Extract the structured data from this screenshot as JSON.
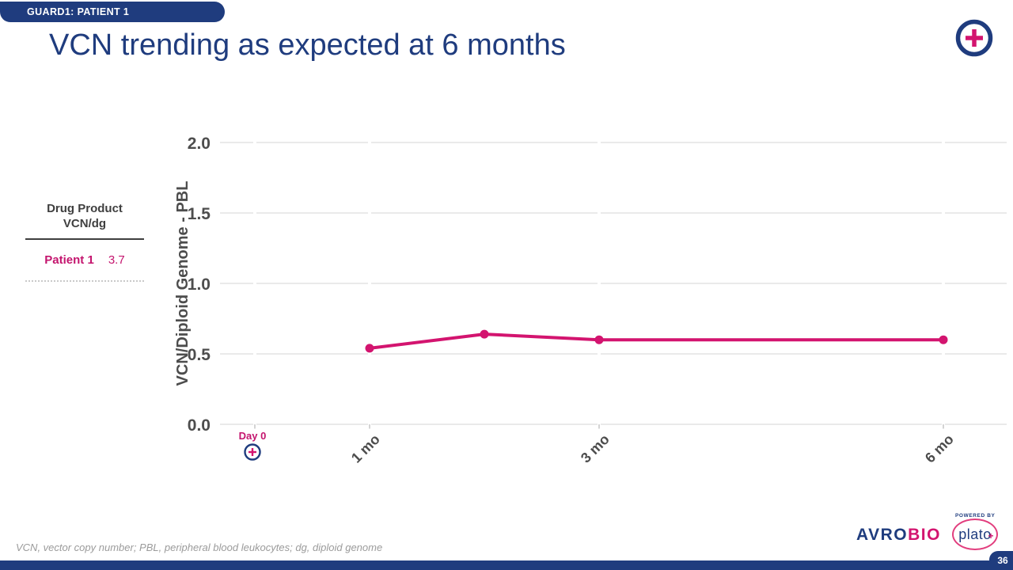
{
  "slide": {
    "badge": "GUARD1: PATIENT 1",
    "title": "VCN trending as expected at 6 months",
    "footnote": "VCN, vector copy number; PBL, peripheral blood leukocytes; dg, diploid genome",
    "page_number": "36"
  },
  "colors": {
    "navy": "#1F3C7E",
    "magenta": "#D3146F",
    "axis_text": "#4D4D4D",
    "gridline": "#E3E3E3"
  },
  "side_table": {
    "header_line1": "Drug Product",
    "header_line2": "VCN/dg",
    "rows": [
      {
        "label": "Patient 1",
        "value": "3.7"
      }
    ]
  },
  "logo": {
    "brand_prefix": "AVRO",
    "brand_suffix": "BIO",
    "powered_by": "POWERED BY",
    "product": "plato",
    "plato_plus": "+"
  },
  "icons": {
    "header_plus_circle": "plus-in-circle",
    "day0_plus_circle": "plus-in-circle"
  },
  "chart_data": {
    "type": "line",
    "title": "",
    "xlabel": "",
    "ylabel": "VCN/Diploid Genome - PBL",
    "ylim": [
      0,
      2.0
    ],
    "yticks": [
      0.0,
      0.5,
      1.0,
      1.5,
      2.0
    ],
    "x_unit": "months",
    "grid": true,
    "xticks": [
      {
        "pos": 0,
        "label": "Day 0"
      },
      {
        "pos": 1,
        "label": "1 mo"
      },
      {
        "pos": 3,
        "label": "3 mo"
      },
      {
        "pos": 6,
        "label": "6 mo"
      }
    ],
    "series": [
      {
        "name": "Patient 1 PBL VCN",
        "x": [
          1,
          2,
          3,
          6
        ],
        "values": [
          0.54,
          0.64,
          0.6,
          0.6
        ],
        "color": "#D3146F"
      }
    ]
  }
}
